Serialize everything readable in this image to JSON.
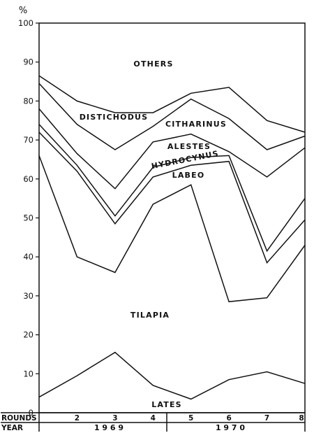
{
  "chart_data": {
    "type": "area",
    "stacked": true,
    "ylabel": "%",
    "ylim": [
      0,
      100
    ],
    "yticks": [
      0,
      10,
      20,
      30,
      40,
      50,
      60,
      70,
      80,
      90,
      100
    ],
    "x": [
      1,
      2,
      3,
      4,
      5,
      6,
      7,
      8
    ],
    "round_labels_title": "ROUNDS",
    "round_labels": [
      "2",
      "3",
      "4",
      "5",
      "6",
      "7",
      "8"
    ],
    "year_title": "YEAR",
    "years": [
      {
        "label": "1 9 6 9",
        "from_round": 1,
        "to_round": 4
      },
      {
        "label": "1 9 7 0",
        "from_round": 4,
        "to_round": 8
      }
    ],
    "boundaries": [
      {
        "name": "Lates",
        "values": [
          4,
          9.5,
          15.5,
          7,
          3.5,
          8.5,
          10.5,
          7.5
        ]
      },
      {
        "name": "Tilapia",
        "values": [
          66,
          40,
          36,
          53.5,
          58.5,
          28.5,
          29.5,
          43
        ]
      },
      {
        "name": "Labeo",
        "values": [
          72,
          62,
          48.5,
          60.5,
          63.5,
          64.5,
          38.5,
          49.5
        ]
      },
      {
        "name": "Hydrocynus",
        "values": [
          74,
          63.5,
          50.5,
          63,
          65.5,
          66,
          41.5,
          55
        ]
      },
      {
        "name": "Alestes",
        "values": [
          78,
          66.5,
          57.5,
          69.5,
          71.5,
          67,
          60.5,
          68
        ]
      },
      {
        "name": "Citharinus",
        "values": [
          84.5,
          74,
          67.5,
          73.5,
          80.5,
          75.5,
          67.5,
          71
        ]
      },
      {
        "name": "Distichodus",
        "values": [
          86.5,
          80,
          77,
          77,
          82,
          83.5,
          75,
          72
        ]
      }
    ],
    "labels": {
      "others": "OTHERS",
      "distichodus": "DISTICHODUS",
      "citharinus": "CITHARINUS",
      "alestes": "ALESTES",
      "hydrocynus": "HYDROCYNUS",
      "labeo": "LABEO",
      "tilapia": "TILAPIA",
      "lates": "LATES"
    },
    "grid": false,
    "legend": "none"
  }
}
